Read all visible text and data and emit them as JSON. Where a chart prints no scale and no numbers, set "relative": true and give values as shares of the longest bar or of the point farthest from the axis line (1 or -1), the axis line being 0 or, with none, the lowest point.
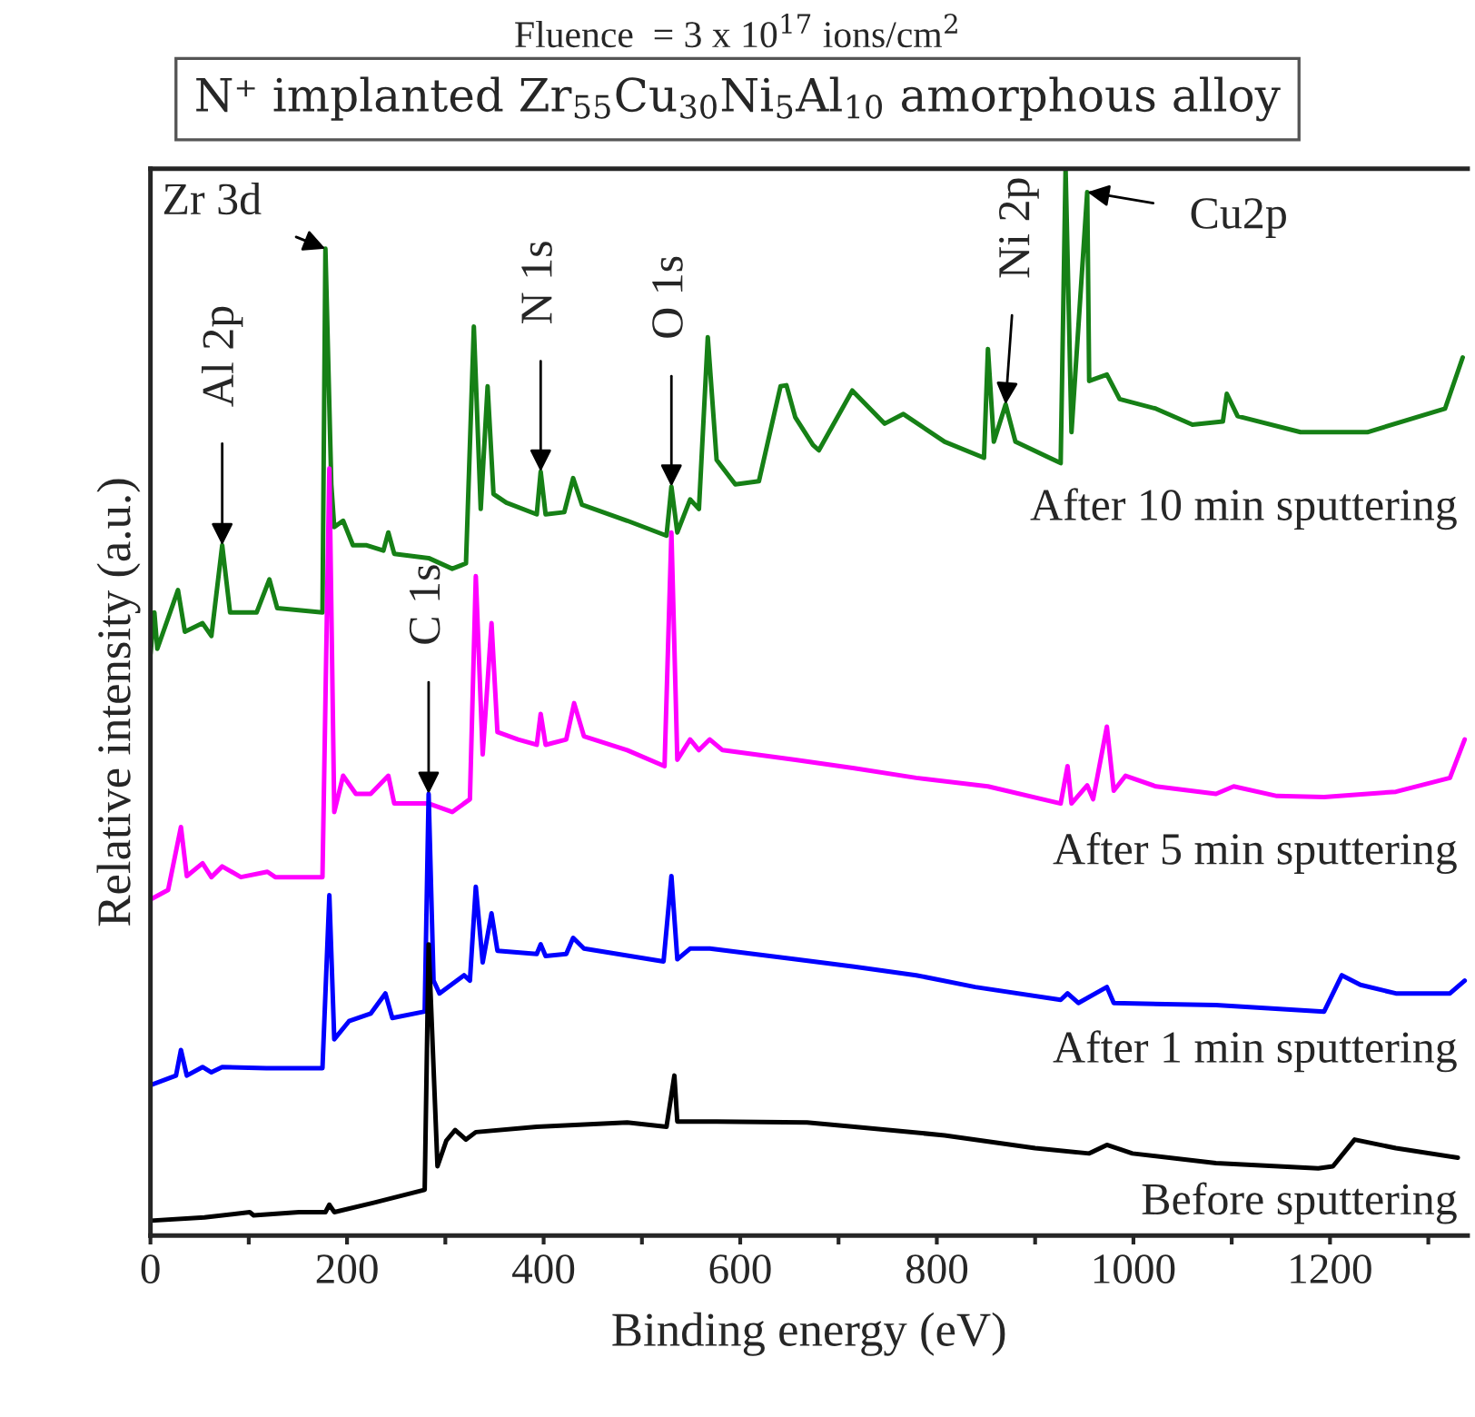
{
  "chart_data": {
    "type": "line",
    "title": "N⁺ implanted Zr$_{55}$Cu$_{30}$Ni$_{5}$Al$_{10}$ amorphous alloy",
    "subtitle": "Fluence  = 3 x 10$^{17}$ ions/cm$^{2}$",
    "xlabel": "Binding energy (eV)",
    "ylabel": "Relative intensity (a.u.)",
    "relative": true,
    "legend": false,
    "grid": false,
    "xlim": [
      0,
      1340
    ],
    "xticks": [
      0,
      {
        "value": 100,
        "label": null
      },
      200,
      {
        "value": 300,
        "label": null
      },
      400,
      {
        "value": 500,
        "label": null
      },
      600,
      {
        "value": 700,
        "label": null
      },
      800,
      {
        "value": 900,
        "label": null
      },
      1000,
      {
        "value": 1100,
        "label": null
      },
      1200,
      {
        "value": 1300,
        "label": null
      }
    ],
    "series": [
      {
        "name": "After 10 min sputtering",
        "color": "#168016",
        "x": [
          0,
          4,
          7,
          28,
          35,
          53,
          62,
          73,
          81,
          108,
          121,
          129,
          175,
          178,
          184,
          187,
          196,
          206,
          220,
          237,
          242,
          248,
          283,
          307,
          321,
          329,
          336,
          343,
          349,
          362,
          393,
          397,
          402,
          421,
          430,
          439,
          485,
          525,
          530,
          536,
          549,
          558,
          567,
          576,
          595,
          619,
          641,
          647,
          656,
          674,
          680,
          714,
          747,
          766,
          808,
          848,
          852,
          858,
          870,
          880,
          926,
          931,
          937,
          953,
          955,
          973,
          986,
          1023,
          1060,
          1091,
          1095,
          1106,
          1170,
          1238,
          1317,
          1335
        ],
        "values": [
          0.545,
          0.584,
          0.55,
          0.605,
          0.566,
          0.574,
          0.562,
          0.647,
          0.584,
          0.584,
          0.615,
          0.588,
          0.584,
          0.925,
          0.704,
          0.664,
          0.67,
          0.647,
          0.647,
          0.642,
          0.659,
          0.639,
          0.635,
          0.625,
          0.63,
          0.852,
          0.681,
          0.796,
          0.695,
          0.687,
          0.676,
          0.716,
          0.676,
          0.678,
          0.71,
          0.685,
          0.67,
          0.656,
          0.702,
          0.659,
          0.69,
          0.681,
          0.842,
          0.727,
          0.704,
          0.707,
          0.796,
          0.797,
          0.767,
          0.741,
          0.736,
          0.792,
          0.761,
          0.77,
          0.744,
          0.729,
          0.831,
          0.744,
          0.779,
          0.744,
          0.724,
          1.0,
          0.753,
          0.978,
          0.801,
          0.807,
          0.784,
          0.775,
          0.76,
          0.763,
          0.789,
          0.768,
          0.753,
          0.753,
          0.775,
          0.823
        ]
      },
      {
        "name": "After 5 min sputtering",
        "color": "#ff00ff",
        "x": [
          0,
          18,
          31,
          37,
          53,
          62,
          73,
          92,
          119,
          127,
          175,
          182,
          187,
          196,
          209,
          224,
          242,
          248,
          283,
          307,
          325,
          331,
          338,
          347,
          353,
          374,
          393,
          397,
          402,
          423,
          431,
          441,
          485,
          523,
          530,
          536,
          549,
          558,
          569,
          582,
          656,
          716,
          779,
          852,
          926,
          933,
          937,
          953,
          959,
          973,
          980,
          992,
          1023,
          1084,
          1102,
          1146,
          1194,
          1267,
          1322,
          1337
        ],
        "values": [
          0.315,
          0.324,
          0.383,
          0.337,
          0.349,
          0.336,
          0.346,
          0.336,
          0.341,
          0.336,
          0.336,
          0.719,
          0.397,
          0.431,
          0.414,
          0.414,
          0.431,
          0.405,
          0.405,
          0.397,
          0.409,
          0.618,
          0.451,
          0.574,
          0.472,
          0.465,
          0.46,
          0.489,
          0.46,
          0.465,
          0.499,
          0.468,
          0.455,
          0.44,
          0.659,
          0.446,
          0.465,
          0.455,
          0.465,
          0.455,
          0.446,
          0.438,
          0.429,
          0.421,
          0.405,
          0.44,
          0.405,
          0.422,
          0.409,
          0.477,
          0.417,
          0.431,
          0.421,
          0.414,
          0.421,
          0.412,
          0.411,
          0.416,
          0.429,
          0.465
        ]
      },
      {
        "name": "After 1 min sputtering",
        "color": "#0000ff",
        "x": [
          0,
          26,
          31,
          37,
          53,
          62,
          73,
          118,
          175,
          182,
          187,
          202,
          224,
          239,
          246,
          279,
          283,
          288,
          294,
          319,
          325,
          331,
          338,
          347,
          353,
          393,
          397,
          402,
          423,
          430,
          441,
          522,
          530,
          536,
          549,
          569,
          656,
          716,
          779,
          839,
          926,
          933,
          944,
          973,
          980,
          1084,
          1194,
          1212,
          1231,
          1267,
          1322,
          1337
        ],
        "values": [
          0.141,
          0.15,
          0.174,
          0.15,
          0.158,
          0.153,
          0.158,
          0.157,
          0.157,
          0.319,
          0.184,
          0.201,
          0.208,
          0.227,
          0.204,
          0.21,
          0.414,
          0.239,
          0.227,
          0.244,
          0.239,
          0.327,
          0.256,
          0.302,
          0.267,
          0.264,
          0.273,
          0.262,
          0.264,
          0.279,
          0.269,
          0.257,
          0.337,
          0.259,
          0.269,
          0.269,
          0.259,
          0.252,
          0.244,
          0.233,
          0.221,
          0.227,
          0.218,
          0.233,
          0.218,
          0.216,
          0.21,
          0.244,
          0.235,
          0.227,
          0.227,
          0.239
        ]
      },
      {
        "name": "Before sputtering",
        "color": "#000000",
        "x": [
          0,
          55,
          101,
          105,
          151,
          178,
          182,
          187,
          228,
          279,
          283,
          292,
          301,
          310,
          321,
          331,
          393,
          485,
          525,
          533,
          536,
          576,
          668,
          716,
          808,
          900,
          955,
          973,
          999,
          1084,
          1188,
          1203,
          1225,
          1267,
          1330
        ],
        "values": [
          0.014,
          0.017,
          0.022,
          0.019,
          0.022,
          0.022,
          0.029,
          0.022,
          0.031,
          0.043,
          0.273,
          0.065,
          0.089,
          0.099,
          0.09,
          0.097,
          0.102,
          0.106,
          0.102,
          0.15,
          0.107,
          0.107,
          0.106,
          0.102,
          0.094,
          0.082,
          0.077,
          0.085,
          0.077,
          0.068,
          0.063,
          0.065,
          0.09,
          0.082,
          0.073
        ]
      }
    ],
    "annotations": [
      {
        "text": "Zr 3d",
        "x": 178,
        "y": 0.925
      },
      {
        "text": "Al 2p",
        "x": 73,
        "y": 0.647
      },
      {
        "text": "C 1s",
        "x": 283,
        "y": 0.414
      },
      {
        "text": "N 1s",
        "x": 397,
        "y": 0.716
      },
      {
        "text": "O 1s",
        "x": 530,
        "y": 0.702
      },
      {
        "text": "Ni 2p",
        "x": 870,
        "y": 0.779
      },
      {
        "text": "Cu2p",
        "x": 953,
        "y": 0.978
      }
    ]
  }
}
